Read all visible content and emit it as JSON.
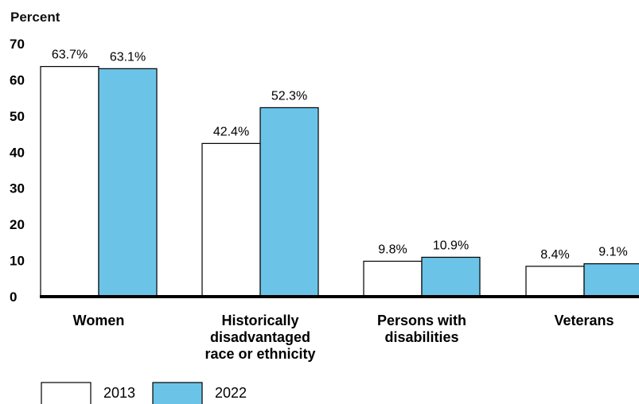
{
  "chart_data": {
    "type": "bar",
    "ylabel": "Percent",
    "ylim": [
      0,
      70
    ],
    "yticks": [
      0,
      10,
      20,
      30,
      40,
      50,
      60,
      70
    ],
    "categories": [
      [
        "Women"
      ],
      [
        "Historically",
        "disadvantaged",
        "race or ethnicity"
      ],
      [
        "Persons with",
        "disabilities"
      ],
      [
        "Veterans"
      ]
    ],
    "series": [
      {
        "name": "2013",
        "color": "#ffffff",
        "values": [
          63.7,
          42.4,
          9.8,
          8.4
        ],
        "labels": [
          "63.7%",
          "42.4%",
          "9.8%",
          "8.4%"
        ]
      },
      {
        "name": "2022",
        "color": "#6bc4e8",
        "values": [
          63.1,
          52.3,
          10.9,
          9.1
        ],
        "labels": [
          "63.1%",
          "52.3%",
          "10.9%",
          "9.1%"
        ]
      }
    ],
    "grid": false,
    "legend": "bottom-left"
  }
}
